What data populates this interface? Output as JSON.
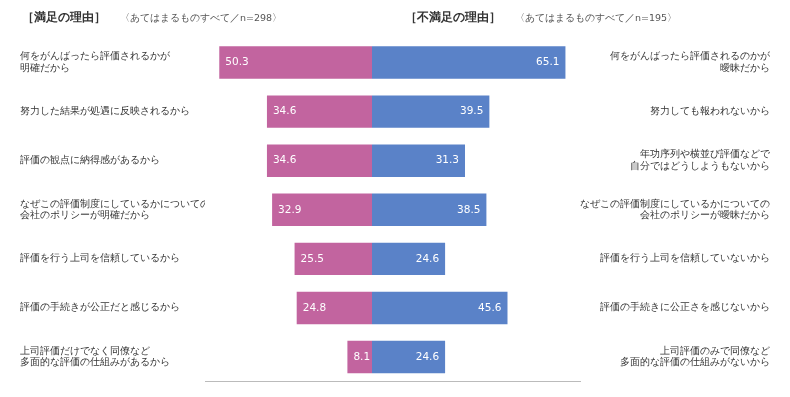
{
  "chart_data": [
    {
      "type": "bar",
      "orientation": "horizontal",
      "title": "［満足の理由］",
      "subtitle": "〈あてはまるものすべて／n=298〉",
      "categories": [
        "何をがんばったら評価されるかが\n明確だから",
        "努力した結果が処遇に反映されるから",
        "評価の観点に納得感があるから",
        "なぜこの評価制度にしているかについての\n会社のポリシーが明確だから",
        "評価を行う上司を信頼しているから",
        "評価の手続きが公正だと感じるから",
        "上司評価だけでなく同僚など\n多面的な評価の仕組みがあるから"
      ],
      "values": [
        50.3,
        34.6,
        34.6,
        32.9,
        25.5,
        24.8,
        8.1
      ],
      "color": "#c2649f",
      "xlim": [
        0,
        55
      ],
      "tick_labels": "y",
      "grid": false,
      "data_labels": true
    },
    {
      "type": "bar",
      "orientation": "horizontal",
      "title": "［不満足の理由］",
      "subtitle": "〈あてはまるものすべて／n=195〉",
      "categories": [
        "何をがんばったら評価されるのかが\n曖昧だから",
        "努力しても報われないから",
        "年功序列や横並び評価などで\n自分ではどうしようもないから",
        "なぜこの評価制度にしているかについての\n会社のポリシーが曖昧だから",
        "評価を行う上司を信頼していないから",
        "評価の手続きに公正さを感じないから",
        "上司評価のみで同僚など\n多面的な評価の仕組みがないから"
      ],
      "values": [
        65.1,
        39.5,
        31.3,
        38.5,
        24.6,
        45.6,
        24.6
      ],
      "color": "#5a82c8",
      "xlim": [
        0,
        70
      ],
      "tick_labels": "y",
      "grid": false,
      "data_labels": true
    }
  ]
}
